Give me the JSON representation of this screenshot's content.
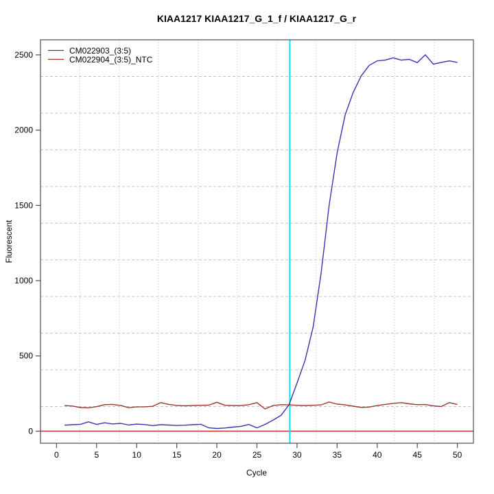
{
  "chart_data": {
    "type": "line",
    "title": "KIAA1217  KIAA1217_G_1_f / KIAA1217_G_r",
    "xlabel": "Cycle",
    "ylabel": "Fluorescent",
    "xlim": [
      -2,
      52
    ],
    "ylim": [
      -80,
      2600
    ],
    "x_ticks": [
      0,
      5,
      10,
      15,
      20,
      25,
      30,
      35,
      40,
      45,
      50
    ],
    "y_ticks": [
      0,
      500,
      1000,
      1500,
      2000,
      2500
    ],
    "grid": {
      "nx": 11,
      "ny": 11,
      "line_style": "dotted",
      "color": "#c3c3c3"
    },
    "legend_position": "top-left",
    "x": [
      1,
      2,
      3,
      4,
      5,
      6,
      7,
      8,
      9,
      10,
      11,
      12,
      13,
      14,
      15,
      16,
      17,
      18,
      19,
      20,
      21,
      22,
      23,
      24,
      25,
      26,
      27,
      28,
      29,
      30,
      31,
      32,
      33,
      34,
      35,
      36,
      37,
      38,
      39,
      40,
      41,
      42,
      43,
      44,
      45,
      46,
      47,
      48,
      49,
      50
    ],
    "series": [
      {
        "name": "CM022903_(3:5)",
        "color": "#3434b2",
        "values": [
          40,
          43,
          46,
          62,
          45,
          56,
          48,
          52,
          41,
          47,
          44,
          37,
          43,
          41,
          38,
          40,
          43,
          46,
          22,
          18,
          21,
          27,
          32,
          45,
          22,
          45,
          73,
          105,
          175,
          320,
          470,
          690,
          1050,
          1500,
          1850,
          2100,
          2250,
          2360,
          2430,
          2460,
          2465,
          2480,
          2465,
          2470,
          2448,
          2500,
          2438,
          2450,
          2460,
          2450
        ]
      },
      {
        "name": "CM022904_(3:5)_NTC",
        "color": "#a03232",
        "values": [
          170,
          167,
          157,
          155,
          163,
          176,
          178,
          171,
          156,
          161,
          162,
          165,
          190,
          178,
          171,
          169,
          170,
          172,
          173,
          192,
          172,
          170,
          170,
          176,
          190,
          148,
          170,
          176,
          175,
          172,
          170,
          172,
          175,
          194,
          180,
          175,
          166,
          158,
          160,
          170,
          178,
          185,
          190,
          182,
          176,
          177,
          168,
          164,
          190,
          178
        ]
      }
    ],
    "threshold_cycle_line": {
      "x": 29.1,
      "color": "#00e5ee",
      "orientation": "vertical"
    },
    "baseline": {
      "y": 0,
      "color": "#c24040",
      "orientation": "horizontal"
    }
  }
}
